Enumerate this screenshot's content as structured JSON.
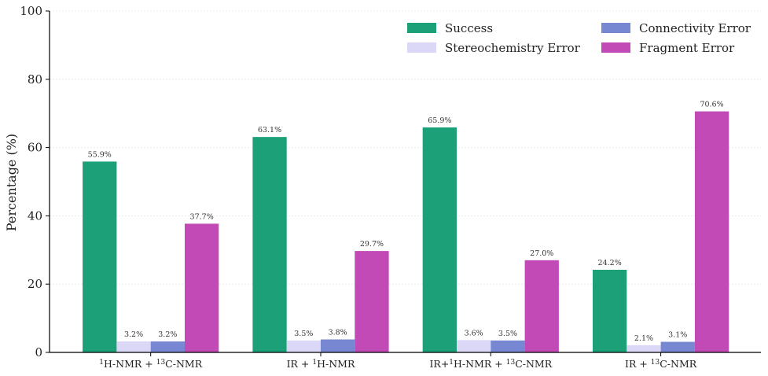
{
  "chart_data": {
    "type": "bar",
    "title": "",
    "xlabel": "",
    "ylabel": "Percentage (%)",
    "ylim": [
      0,
      100
    ],
    "yticks": [
      0,
      20,
      40,
      60,
      80,
      100
    ],
    "grid": true,
    "legend_position": "top-right",
    "categories": [
      {
        "pre": "",
        "sup1": "1",
        "mid": "H-NMR + ",
        "sup2": "13",
        "post": "C-NMR"
      },
      {
        "pre": "IR + ",
        "sup1": "1",
        "mid": "H-NMR",
        "sup2": "",
        "post": ""
      },
      {
        "pre": "IR+",
        "sup1": "1",
        "mid": "H-NMR + ",
        "sup2": "13",
        "post": "C-NMR"
      },
      {
        "pre": "IR + ",
        "sup1": "13",
        "mid": "C-NMR",
        "sup2": "",
        "post": ""
      }
    ],
    "series": [
      {
        "name": "Success",
        "color": "#1ba078",
        "values": [
          55.9,
          63.1,
          65.9,
          24.2
        ],
        "labels": [
          "55.9%",
          "63.1%",
          "65.9%",
          "24.2%"
        ]
      },
      {
        "name": "Stereochemistry Error",
        "color": "#dad7f7",
        "values": [
          3.2,
          3.5,
          3.6,
          2.1
        ],
        "labels": [
          "3.2%",
          "3.5%",
          "3.6%",
          "2.1%"
        ]
      },
      {
        "name": "Connectivity Error",
        "color": "#7787d2",
        "values": [
          3.2,
          3.8,
          3.5,
          3.1
        ],
        "labels": [
          "3.2%",
          "3.8%",
          "3.5%",
          "3.1%"
        ]
      },
      {
        "name": "Fragment Error",
        "color": "#c24ab7",
        "values": [
          37.7,
          29.7,
          27.0,
          70.6
        ],
        "labels": [
          "37.7%",
          "29.7%",
          "27.0%",
          "70.6%"
        ]
      }
    ]
  }
}
